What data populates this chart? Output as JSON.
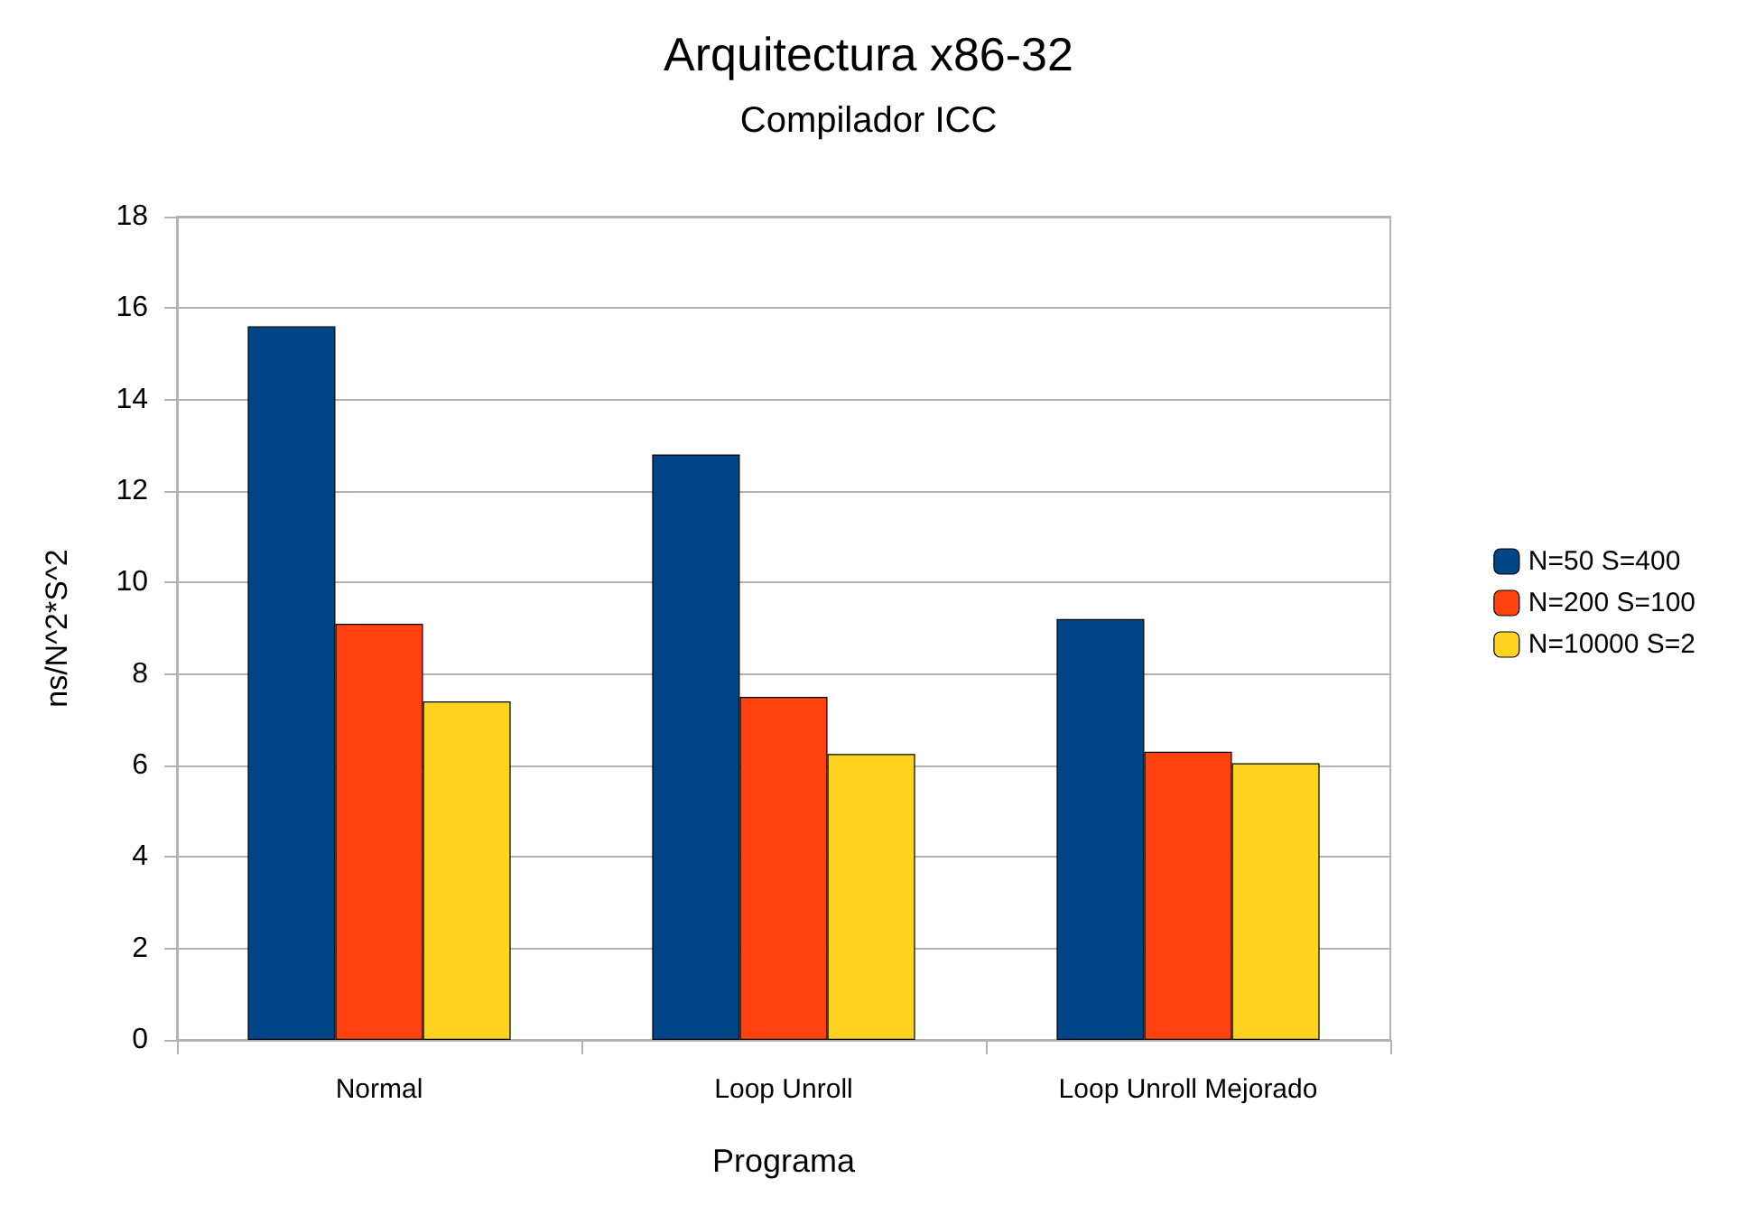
{
  "chart_data": {
    "type": "bar",
    "title": "Arquitectura x86-32",
    "subtitle": "Compilador ICC",
    "xlabel": "Programa",
    "ylabel": "ns/N^2*S^2",
    "categories": [
      "Normal",
      "Loop Unroll",
      "Loop Unroll Mejorado"
    ],
    "series": [
      {
        "name": "N=50 S=400",
        "color": "#004586",
        "values": [
          15.6,
          12.8,
          9.2
        ]
      },
      {
        "name": "N=200 S=100",
        "color": "#ff420e",
        "values": [
          9.1,
          7.5,
          6.3
        ]
      },
      {
        "name": "N=10000 S=2",
        "color": "#ffd320",
        "values": [
          7.4,
          6.25,
          6.05
        ]
      }
    ],
    "ylim": [
      0,
      18
    ],
    "yticks": [
      0,
      2,
      4,
      6,
      8,
      10,
      12,
      14,
      16,
      18
    ],
    "grid": "y",
    "legend": "right"
  }
}
